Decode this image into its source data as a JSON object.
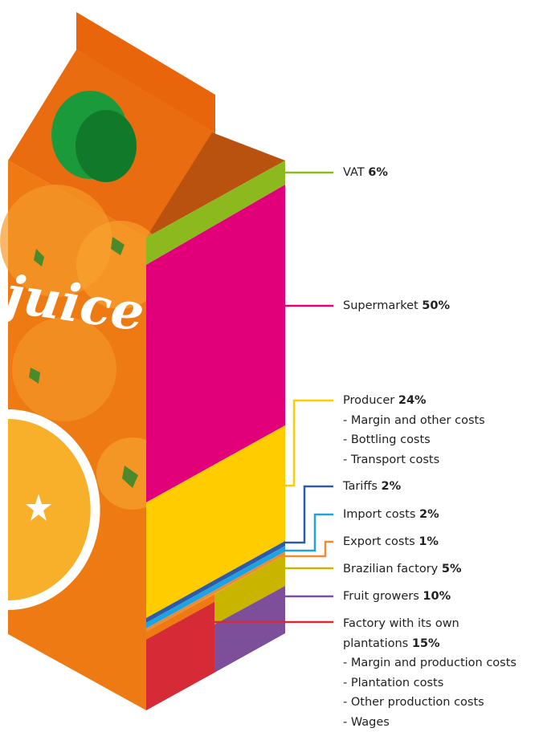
{
  "brand": "juice",
  "items": [
    {
      "label": "VAT",
      "value": "6%"
    },
    {
      "label": "Supermarket",
      "value": "50%"
    },
    {
      "label": "Producer",
      "value": "24%",
      "details": [
        "- Margin and other costs",
        "- Bottling costs",
        "- Transport costs"
      ]
    },
    {
      "label": "Tariffs",
      "value": "2%"
    },
    {
      "label": "Import costs",
      "value": "2%"
    },
    {
      "label": "Export costs",
      "value": "1%"
    },
    {
      "label": "Brazilian factory",
      "value": "5%"
    },
    {
      "label": "Fruit growers",
      "value": "10%"
    },
    {
      "label_lines": [
        "Factory with its own",
        "plantations"
      ],
      "value": "15%",
      "details": [
        "- Margin and production costs",
        "- Plantation costs",
        "- Other production costs",
        "- Wages"
      ]
    }
  ]
}
